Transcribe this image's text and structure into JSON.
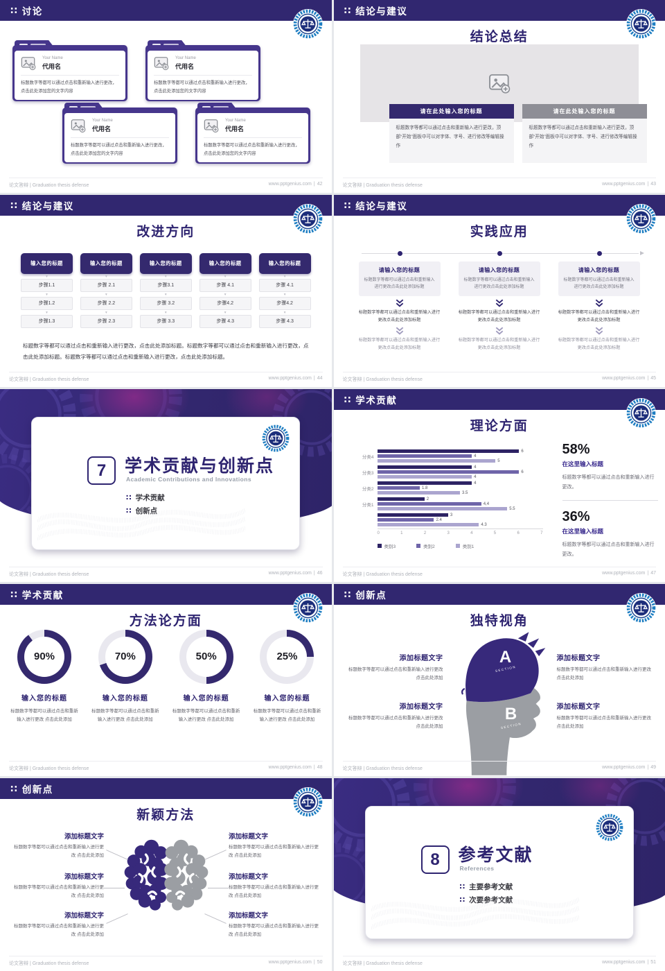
{
  "theme": {
    "colors": {
      "primary": "#34296E",
      "header_bar": "#312770",
      "folder_purple": "#46368C",
      "gray_header_bar": "#8E8E96",
      "stat_purple": "#3A2B8E",
      "bar_dark": "#2D2364",
      "bar_mid": "#6F65A9",
      "bar_light": "#ABA5CF",
      "logo_blue": "#1F7EC2",
      "logo_navy": "#1D2E7B",
      "pink_accent": "#A93288"
    },
    "icons": {
      "section_marker": "∷",
      "down_arrow": "▾"
    }
  },
  "footer": {
    "left": "论文答辩 | Graduation thesis defense",
    "site": "www.pptgenius.com",
    "separator": "|"
  },
  "chart_data": [
    {
      "type": "bar",
      "orientation": "horizontal",
      "title": "理论方面",
      "categories": [
        "分类4",
        "分类3",
        "分类2",
        "分类1",
        ""
      ],
      "series": [
        {
          "name": "类别3",
          "color": "#2D2364",
          "values": [
            6,
            4,
            4,
            2,
            3
          ],
          "labels": [
            "6",
            "4",
            "4",
            "2",
            "3"
          ]
        },
        {
          "name": "类别2",
          "color": "#6F65A9",
          "values": [
            4,
            6,
            1.8,
            4.4,
            2.4
          ],
          "labels": [
            "4",
            "6",
            "1.8",
            "4,4",
            "2.4"
          ]
        },
        {
          "name": "类别1",
          "color": "#ABA5CF",
          "values": [
            5,
            4,
            3.5,
            5.5,
            4.3
          ],
          "labels": [
            "5",
            "4",
            "3.5",
            "5.5",
            "4.3"
          ]
        }
      ],
      "xlim": [
        0,
        7
      ],
      "x_ticks": [
        "0",
        "1",
        "2",
        "3",
        "4",
        "5",
        "6",
        "7"
      ],
      "legend_position": "bottom",
      "grid": false
    },
    {
      "type": "pie",
      "subtype": "donut",
      "title": "方法论方面",
      "values": [
        90,
        70,
        50,
        25
      ],
      "labels": [
        "90%",
        "70%",
        "50%",
        "25%"
      ]
    }
  ],
  "slides": [
    {
      "page": "42",
      "header": "讨论",
      "cards": [
        {
          "name_en": "Your Name",
          "name_cn": "代用名",
          "body": "标题数字等都可以通过点击和重新输入进行更改，点击此处添加您的文字内容"
        },
        {
          "name_en": "Your Name",
          "name_cn": "代用名",
          "body": "标题数字等都可以通过点击和重新输入进行更改，点击此处添加您的文字内容"
        },
        {
          "name_en": "Your Name",
          "name_cn": "代用名",
          "body": "标题数字等都可以通过点击和重新输入进行更改，点击此处添加您的文字内容"
        },
        {
          "name_en": "Your Name",
          "name_cn": "代用名",
          "body": "标题数字等都可以通过点击和重新输入进行更改，点击此处添加您的文字内容"
        }
      ]
    },
    {
      "page": "43",
      "header": "结论与建议",
      "heading": "结论总结",
      "columns": [
        {
          "title": "请在此处输入您的标题",
          "body": "标题数字等都可以通过点击和重新输入进行更改，顶部“开始”面板中可以对字体、字号、进行修改等编辑操作"
        },
        {
          "title": "请在此处输入您的标题",
          "body": "标题数字等都可以通过点击和重新输入进行更改，顶部“开始”面板中可以对字体、字号、进行修改等编辑操作"
        }
      ]
    },
    {
      "page": "44",
      "header": "结论与建议",
      "heading": "改进方向",
      "columns": [
        {
          "title": "输入您的标题",
          "steps": [
            "步骤1.1",
            "步骤1.2",
            "步骤1.3"
          ]
        },
        {
          "title": "输入您的标题",
          "steps": [
            "步骤 2.1",
            "步骤 2.2",
            "步骤 2.3"
          ]
        },
        {
          "title": "输入您的标题",
          "steps": [
            "步骤3.1",
            "步骤 3.2",
            "步骤 3.3"
          ]
        },
        {
          "title": "输入您的标题",
          "steps": [
            "步骤 4.1",
            "步骤4.2",
            "步骤 4.3"
          ]
        },
        {
          "title": "输入您的标题",
          "steps": [
            "步骤 4.1",
            "步骤4.2",
            "步骤 4.3"
          ]
        }
      ],
      "paragraph": "标题数字等都可以通过点击和重新输入进行更改，点击此处添加标题。标题数字等都可以通过点击和重新输入进行更改，点击此处添加标题。标题数字等都可以通过点击和重新输入进行更改，点击此处添加标题。"
    },
    {
      "page": "45",
      "header": "结论与建议",
      "heading": "实践应用",
      "columns": [
        {
          "title": "请输入您的标题",
          "body": "标题数字等都可以通过点击和重新输入进行更改点击此处添加标题",
          "step2": "标题数字等都可以通过点击和重新输入进行更改点击此处添加标题",
          "step3": "标题数字等都可以通过点击和重新输入进行更改点击此处添加标题"
        },
        {
          "title": "请输入您的标题",
          "body": "标题数字等都可以通过点击和重新输入进行更改点击此处添加标题",
          "step2": "标题数字等都可以通过点击和重新输入进行更改点击此处添加标题",
          "step3": "标题数字等都可以通过点击和重新输入进行更改点击此处添加标题"
        },
        {
          "title": "请输入您的标题",
          "body": "标题数字等都可以通过点击和重新输入进行更改点击此处添加标题",
          "step2": "标题数字等都可以通过点击和重新输入进行更改点击此处添加标题",
          "step3": "标题数字等都可以通过点击和重新输入进行更改点击此处添加标题"
        }
      ]
    },
    {
      "page": "46",
      "type": "cover",
      "number": "7",
      "title": "学术贡献与创新点",
      "subtitle": "Academic Contributions and Innovations",
      "items": [
        "学术贡献",
        "创新点"
      ]
    },
    {
      "page": "47",
      "header": "学术贡献",
      "heading": "理论方面",
      "stats": [
        {
          "value": "58%",
          "title": "在这里输入标题",
          "body": "标题数字等都可以通过点击和重新输入进行更改。"
        },
        {
          "value": "36%",
          "title": "在这里输入标题",
          "body": "标题数字等都可以通过点击和重新输入进行更改。"
        }
      ]
    },
    {
      "page": "48",
      "header": "学术贡献",
      "heading": "方法论方面",
      "donuts": [
        {
          "value": 90,
          "label": "90%",
          "title": "输入您的标题",
          "body": "标题数字等都可以通过点击和重新输入进行更改 点击此处添加"
        },
        {
          "value": 70,
          "label": "70%",
          "title": "输入您的标题",
          "body": "标题数字等都可以通过点击和重新输入进行更改 点击此处添加"
        },
        {
          "value": 50,
          "label": "50%",
          "title": "输入您的标题",
          "body": "标题数字等都可以通过点击和重新输入进行更改 点击此处添加"
        },
        {
          "value": 25,
          "label": "25%",
          "title": "输入您的标题",
          "body": "标题数字等都可以通过点击和重新输入进行更改 点击此处添加"
        }
      ]
    },
    {
      "page": "49",
      "header": "创新点",
      "heading": "独特视角",
      "section_a": "A",
      "section_b": "B",
      "section_label": "SECTION",
      "blocks": [
        {
          "title": "添加标题文字",
          "body": "标题数字等都可以通过点击和重新输入进行更改 点击此处添加"
        },
        {
          "title": "添加标题文字",
          "body": "标题数字等都可以通过点击和重新输入进行更改 点击此处添加"
        },
        {
          "title": "添加标题文字",
          "body": "标题数字等都可以通过点击和重新输入进行更改 点击此处添加"
        },
        {
          "title": "添加标题文字",
          "body": "标题数字等都可以通过点击和重新输入进行更改 点击此处添加"
        }
      ]
    },
    {
      "page": "50",
      "header": "创新点",
      "heading": "新颖方法",
      "blocks": [
        {
          "title": "添加标题文字",
          "body": "标题数字等都可以通过点击和重新输入进行更改 点击此处添加"
        },
        {
          "title": "添加标题文字",
          "body": "标题数字等都可以通过点击和重新输入进行更改 点击此处添加"
        },
        {
          "title": "添加标题文字",
          "body": "标题数字等都可以通过点击和重新输入进行更改 点击此处添加"
        },
        {
          "title": "添加标题文字",
          "body": "标题数字等都可以通过点击和重新输入进行更改 点击此处添加"
        },
        {
          "title": "添加标题文字",
          "body": "标题数字等都可以通过点击和重新输入进行更改 点击此处添加"
        },
        {
          "title": "添加标题文字",
          "body": "标题数字等都可以通过点击和重新输入进行更改 点击此处添加"
        }
      ]
    },
    {
      "page": "51",
      "type": "cover",
      "number": "8",
      "title": "参考文献",
      "subtitle": "References",
      "items": [
        "主要参考文献",
        "次要参考文献"
      ]
    }
  ]
}
